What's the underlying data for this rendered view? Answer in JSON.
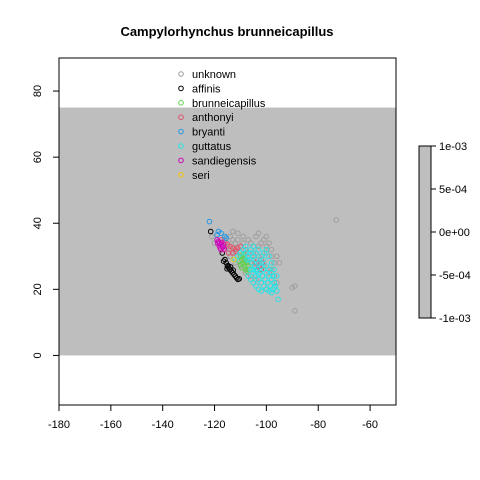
{
  "chart_data": {
    "type": "scatter",
    "title": "Campylorhynchus brunneicapillus",
    "xlim": [
      -180,
      -50
    ],
    "ylim": [
      -15,
      90
    ],
    "x_ticks": [
      -180,
      -160,
      -140,
      -120,
      -100,
      -80,
      -60
    ],
    "y_ticks": [
      0,
      20,
      40,
      60,
      80
    ],
    "grid": false,
    "shaded_region": {
      "x": [
        -180,
        -50
      ],
      "y": [
        0,
        75
      ],
      "color": "#bebebe"
    },
    "legend": {
      "position": "top-center"
    },
    "colorbar": {
      "labels": [
        "1e-03",
        "5e-04",
        "0e+00",
        "-5e-04",
        "-1e-03"
      ],
      "values": [
        0.001,
        0.0005,
        0,
        -0.0005,
        -0.001
      ],
      "color": "#bebebe"
    },
    "series": [
      {
        "name": "unknown",
        "color": "#9e9e9e",
        "points": [
          [
            -73,
            41
          ],
          [
            -89,
            21
          ],
          [
            -90,
            20.5
          ],
          [
            -89,
            13.5
          ],
          [
            -98,
            30
          ],
          [
            -97,
            28
          ],
          [
            -99,
            34
          ],
          [
            -100,
            36
          ],
          [
            -101,
            35
          ],
          [
            -103,
            37
          ],
          [
            -104,
            36
          ],
          [
            -106,
            34
          ],
          [
            -105,
            31
          ],
          [
            -108,
            32
          ],
          [
            -109,
            34
          ],
          [
            -110,
            33
          ],
          [
            -111,
            35
          ],
          [
            -112,
            34
          ],
          [
            -113,
            35
          ],
          [
            -114,
            36
          ],
          [
            -115,
            34
          ],
          [
            -116,
            35
          ],
          [
            -117,
            33
          ],
          [
            -118,
            34
          ],
          [
            -114,
            32
          ],
          [
            -112,
            31
          ],
          [
            -110,
            30
          ],
          [
            -108,
            29
          ],
          [
            -106,
            28
          ],
          [
            -104,
            27
          ],
          [
            -102,
            29
          ],
          [
            -100,
            31
          ],
          [
            -98,
            26
          ],
          [
            -97,
            24
          ],
          [
            -96,
            22
          ],
          [
            -99,
            25
          ],
          [
            -101,
            27
          ],
          [
            -103,
            30
          ],
          [
            -105,
            33
          ],
          [
            -107,
            35
          ],
          [
            -109,
            36
          ],
          [
            -111,
            37
          ],
          [
            -113,
            37.5
          ],
          [
            -119,
            35
          ],
          [
            -121,
            36
          ],
          [
            -120,
            34
          ],
          [
            -116,
            29
          ],
          [
            -114,
            30
          ],
          [
            -112,
            28
          ],
          [
            -110,
            27
          ],
          [
            -108,
            25
          ],
          [
            -106,
            24
          ],
          [
            -104,
            23
          ],
          [
            -102,
            22
          ],
          [
            -100,
            20
          ],
          [
            -98,
            32
          ],
          [
            -96,
            30
          ],
          [
            -95,
            28
          ],
          [
            -105,
            29
          ],
          [
            -107,
            31
          ],
          [
            -102,
            34
          ],
          [
            -100,
            33
          ],
          [
            -103,
            33
          ]
        ]
      },
      {
        "name": "affinis",
        "color": "#000000",
        "points": [
          [
            -121.5,
            37.5
          ],
          [
            -117,
            31
          ],
          [
            -116,
            29
          ],
          [
            -115.5,
            28
          ],
          [
            -115,
            27
          ],
          [
            -114.5,
            26.5
          ],
          [
            -114,
            26
          ],
          [
            -113.5,
            25.5
          ],
          [
            -113,
            25
          ],
          [
            -112.5,
            24.5
          ],
          [
            -112,
            24
          ],
          [
            -111.5,
            23.5
          ],
          [
            -111,
            23
          ],
          [
            -110.5,
            23.2
          ],
          [
            -116.5,
            28.5
          ],
          [
            -114.8,
            27.2
          ],
          [
            -113.8,
            26.8
          ],
          [
            -112.8,
            25.8
          ],
          [
            -115.2,
            26.2
          ]
        ]
      },
      {
        "name": "brunneicapillus",
        "color": "#61d04f",
        "points": [
          [
            -110,
            30
          ],
          [
            -109.5,
            29
          ],
          [
            -109,
            28
          ],
          [
            -108.5,
            27
          ],
          [
            -108,
            26
          ],
          [
            -107.5,
            25.5
          ],
          [
            -109,
            30.5
          ],
          [
            -110.5,
            28.5
          ],
          [
            -108,
            28.5
          ],
          [
            -107,
            27
          ],
          [
            -109.5,
            26.5
          ],
          [
            -108.5,
            29.5
          ],
          [
            -110,
            27.5
          ],
          [
            -107.5,
            28
          ],
          [
            -106.8,
            26
          ]
        ]
      },
      {
        "name": "anthonyi",
        "color": "#df536b",
        "points": [
          [
            -117,
            33
          ],
          [
            -116,
            34
          ],
          [
            -115,
            33.5
          ],
          [
            -114,
            33
          ],
          [
            -113,
            32.5
          ],
          [
            -112,
            32
          ],
          [
            -111,
            32.5
          ],
          [
            -110,
            33
          ],
          [
            -118,
            34
          ],
          [
            -117.5,
            35
          ],
          [
            -116.5,
            32
          ],
          [
            -114.5,
            31
          ],
          [
            -113,
            31
          ],
          [
            -111.5,
            31.5
          ],
          [
            -103,
            27
          ],
          [
            -102,
            26
          ],
          [
            -104,
            28
          ],
          [
            -101.5,
            28
          ]
        ]
      },
      {
        "name": "bryanti",
        "color": "#2297e6",
        "points": [
          [
            -122,
            40.5
          ],
          [
            -118.5,
            37.5
          ],
          [
            -117.5,
            37
          ],
          [
            -119,
            36.5
          ],
          [
            -116,
            36
          ],
          [
            -115.5,
            35.5
          ]
        ]
      },
      {
        "name": "guttatus",
        "color": "#28e2e5",
        "points": [
          [
            -106,
            31
          ],
          [
            -105,
            30
          ],
          [
            -104,
            29
          ],
          [
            -103,
            28
          ],
          [
            -102,
            27
          ],
          [
            -101,
            26
          ],
          [
            -100,
            25
          ],
          [
            -99,
            24
          ],
          [
            -98,
            23
          ],
          [
            -97,
            22
          ],
          [
            -96.5,
            21
          ],
          [
            -97.5,
            20
          ],
          [
            -98.5,
            21
          ],
          [
            -99.5,
            22
          ],
          [
            -100.5,
            23
          ],
          [
            -101.5,
            24
          ],
          [
            -102.5,
            25
          ],
          [
            -103.5,
            26
          ],
          [
            -104.5,
            27
          ],
          [
            -105.5,
            28
          ],
          [
            -106.5,
            29
          ],
          [
            -107,
            30
          ],
          [
            -108,
            31
          ],
          [
            -107.5,
            29
          ],
          [
            -106,
            26
          ],
          [
            -105,
            25
          ],
          [
            -104,
            24
          ],
          [
            -103,
            23
          ],
          [
            -102,
            22
          ],
          [
            -101,
            21
          ],
          [
            -100,
            20
          ],
          [
            -99,
            19.5
          ],
          [
            -98,
            19
          ],
          [
            -97,
            20.5
          ],
          [
            -96,
            19.5
          ],
          [
            -95.5,
            17
          ],
          [
            -96,
            24
          ],
          [
            -97,
            26
          ],
          [
            -98,
            28
          ],
          [
            -99,
            30
          ],
          [
            -100,
            32
          ],
          [
            -101,
            31
          ],
          [
            -102,
            30
          ],
          [
            -103,
            32
          ],
          [
            -104,
            31
          ],
          [
            -105,
            33
          ],
          [
            -106,
            32
          ],
          [
            -108,
            33
          ],
          [
            -109,
            32
          ],
          [
            -110,
            31
          ],
          [
            -111,
            30
          ],
          [
            -112,
            29
          ],
          [
            -107,
            24
          ],
          [
            -106,
            23
          ],
          [
            -105,
            22
          ],
          [
            -104,
            21
          ],
          [
            -103,
            20
          ],
          [
            -102,
            19.5
          ],
          [
            -100,
            27
          ],
          [
            -99,
            26
          ],
          [
            -98,
            25
          ],
          [
            -97.5,
            24
          ],
          [
            -101,
            29
          ],
          [
            -102,
            28
          ],
          [
            -105,
            26
          ],
          [
            -104,
            25.5
          ],
          [
            -103,
            24.5
          ]
        ]
      },
      {
        "name": "sandiegensis",
        "color": "#cd0bbc",
        "points": [
          [
            -119,
            35
          ],
          [
            -118.5,
            34.5
          ],
          [
            -118,
            34
          ],
          [
            -117.5,
            33.5
          ],
          [
            -117,
            33
          ],
          [
            -116.8,
            32.8
          ],
          [
            -118.2,
            33.2
          ],
          [
            -117.2,
            34.2
          ],
          [
            -116.5,
            33.5
          ],
          [
            -117.8,
            32.5
          ],
          [
            -116.2,
            32.2
          ],
          [
            -118.8,
            34
          ],
          [
            -117.5,
            32
          ]
        ]
      },
      {
        "name": "seri",
        "color": "#f5c710",
        "points": [
          [
            -112.5,
            29
          ]
        ]
      }
    ]
  }
}
